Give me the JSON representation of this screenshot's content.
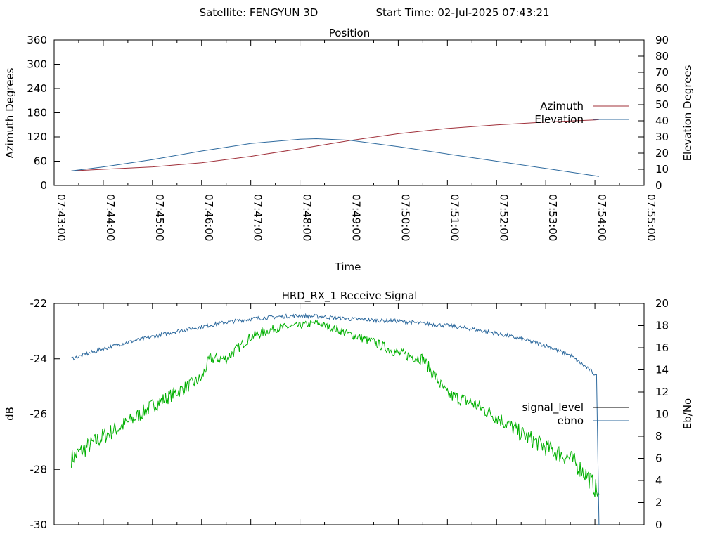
{
  "header": {
    "satellite_label": "Satellite: FENGYUN 3D",
    "start_time_label": "Start Time: 02-Jul-2025 07:43:21"
  },
  "chart_data": [
    {
      "type": "line",
      "title": "Position",
      "xlabel": "Time",
      "ylabel": "Azimuth Degrees",
      "y2label": "Elevation Degrees",
      "xlim": [
        "07:43:00",
        "07:55:00"
      ],
      "ylim": [
        0,
        360
      ],
      "y2lim": [
        0,
        90
      ],
      "yticks": [
        0,
        60,
        120,
        180,
        240,
        300,
        360
      ],
      "y2ticks": [
        0,
        10,
        20,
        30,
        40,
        50,
        60,
        70,
        80,
        90
      ],
      "xticks": [
        "07:43:00",
        "07:44:00",
        "07:45:00",
        "07:46:00",
        "07:47:00",
        "07:48:00",
        "07:49:00",
        "07:50:00",
        "07:51:00",
        "07:52:00",
        "07:53:00",
        "07:54:00",
        "07:55:00"
      ],
      "legend_position": "right",
      "series": [
        {
          "name": "Azimuth",
          "axis": "left",
          "color": "#a0303a",
          "x": [
            "07:43:21",
            "07:44:00",
            "07:45:00",
            "07:46:00",
            "07:47:00",
            "07:48:00",
            "07:49:00",
            "07:50:00",
            "07:51:00",
            "07:52:00",
            "07:53:00",
            "07:54:00",
            "07:54:05"
          ],
          "values": [
            36,
            40,
            46,
            56,
            72,
            91,
            111,
            128,
            141,
            150,
            157,
            162,
            163
          ]
        },
        {
          "name": "Elevation",
          "axis": "right",
          "color": "#2e6a9e",
          "x": [
            "07:43:21",
            "07:44:00",
            "07:45:00",
            "07:46:00",
            "07:47:00",
            "07:48:00",
            "07:48:20",
            "07:49:00",
            "07:50:00",
            "07:51:00",
            "07:52:00",
            "07:53:00",
            "07:54:00",
            "07:54:05"
          ],
          "values": [
            9,
            11.5,
            16,
            21.3,
            26,
            28.6,
            28.9,
            28,
            24,
            19.5,
            15,
            10.5,
            6,
            5.5
          ]
        }
      ]
    },
    {
      "type": "line",
      "title": "HRD_RX_1 Receive Signal",
      "xlabel": "",
      "ylabel": "dB",
      "y2label": "Eb/No",
      "xlim": [
        "07:43:00",
        "07:55:00"
      ],
      "ylim": [
        -30,
        -22
      ],
      "y2lim": [
        0,
        20
      ],
      "yticks": [
        -30,
        -28,
        -26,
        -24,
        -22
      ],
      "y2ticks": [
        0,
        2,
        4,
        6,
        8,
        10,
        12,
        14,
        16,
        18,
        20
      ],
      "legend_position": "right",
      "series": [
        {
          "name": "signal_level",
          "axis": "left",
          "legend_color": "#000000",
          "color": "#00b000",
          "x": [
            "07:43:21",
            "07:43:40",
            "07:44:00",
            "07:44:30",
            "07:45:00",
            "07:45:30",
            "07:46:00",
            "07:46:10",
            "07:46:30",
            "07:47:00",
            "07:47:30",
            "07:48:00",
            "07:48:20",
            "07:48:40",
            "07:49:00",
            "07:49:30",
            "07:50:00",
            "07:50:30",
            "07:51:00",
            "07:51:30",
            "07:52:00",
            "07:52:30",
            "07:53:00",
            "07:53:30",
            "07:53:50",
            "07:54:05"
          ],
          "values": [
            -27.6,
            -27.2,
            -26.8,
            -26.3,
            -25.7,
            -25.2,
            -24.7,
            -24.0,
            -24.0,
            -23.2,
            -22.9,
            -22.8,
            -22.7,
            -22.9,
            -23.1,
            -23.4,
            -23.8,
            -24.0,
            -25.3,
            -25.6,
            -26.1,
            -26.7,
            -27.2,
            -27.6,
            -28.2,
            -28.9
          ]
        },
        {
          "name": "ebno",
          "axis": "right",
          "color": "#2e6a9e",
          "x": [
            "07:43:21",
            "07:44:00",
            "07:44:30",
            "07:45:00",
            "07:45:30",
            "07:46:00",
            "07:46:30",
            "07:47:00",
            "07:47:30",
            "07:48:00",
            "07:48:30",
            "07:49:00",
            "07:49:30",
            "07:50:00",
            "07:50:30",
            "07:51:00",
            "07:51:30",
            "07:52:00",
            "07:52:30",
            "07:53:00",
            "07:53:30",
            "07:53:50",
            "07:54:00",
            "07:54:05"
          ],
          "values": [
            15.0,
            15.9,
            16.5,
            17.0,
            17.5,
            17.9,
            18.3,
            18.6,
            18.8,
            18.9,
            18.8,
            18.6,
            18.5,
            18.4,
            18.2,
            18.0,
            17.7,
            17.3,
            16.8,
            16.2,
            15.3,
            14.2,
            13.6,
            0
          ]
        }
      ]
    }
  ]
}
